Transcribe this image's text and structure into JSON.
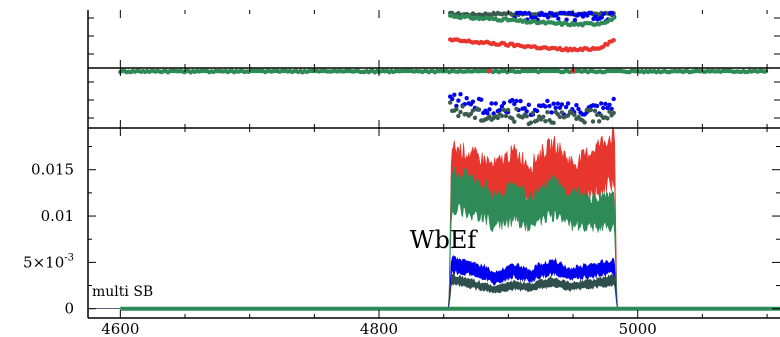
{
  "chart_data": [
    {
      "type": "scatter",
      "panel": "top-upper",
      "x_range": [
        4575,
        5110
      ],
      "y_range": [
        0,
        1
      ],
      "series": [
        {
          "color": "#3a5a4f",
          "x": [
            4855,
            4875,
            4895,
            4915,
            4935,
            4955,
            4975,
            4983
          ],
          "y": [
            0.98,
            0.97,
            0.99,
            0.98,
            0.97,
            0.98,
            0.99,
            0.98
          ]
        },
        {
          "color": "#0000ee",
          "x": [
            4905,
            4915,
            4930,
            4945,
            4960,
            4975,
            4982
          ],
          "y": [
            0.99,
            0.98,
            0.99,
            0.97,
            0.99,
            0.96,
            0.98
          ]
        },
        {
          "color": "#2e8b57",
          "x": [
            4855,
            4875,
            4895,
            4915,
            4935,
            4955,
            4970,
            4983
          ],
          "y": [
            0.95,
            0.9,
            0.88,
            0.83,
            0.8,
            0.78,
            0.8,
            0.9
          ]
        },
        {
          "color": "#e8352e",
          "x": [
            4855,
            4875,
            4895,
            4915,
            4935,
            4955,
            4970,
            4983
          ],
          "y": [
            0.48,
            0.44,
            0.4,
            0.36,
            0.31,
            0.29,
            0.33,
            0.5
          ]
        }
      ]
    },
    {
      "type": "scatter",
      "panel": "top-lower",
      "x_range": [
        4575,
        5110
      ],
      "y_range": [
        0,
        1
      ],
      "series": [
        {
          "color": "#2e8b57",
          "x": [
            4600,
            4700,
            4800,
            4854,
            4983,
            5000,
            5100
          ],
          "y": [
            1,
            1,
            1,
            1,
            1,
            1,
            1
          ]
        },
        {
          "color": "#e8352e",
          "x": [
            4885,
            4950
          ],
          "y": [
            1,
            1
          ]
        },
        {
          "color": "#0000ee",
          "x": [
            4855,
            4870,
            4885,
            4900,
            4915,
            4930,
            4945,
            4960,
            4975,
            4983
          ],
          "y": [
            0.48,
            0.42,
            0.3,
            0.36,
            0.3,
            0.33,
            0.3,
            0.32,
            0.35,
            0.45
          ]
        },
        {
          "color": "#3a5a4f",
          "x": [
            4855,
            4870,
            4885,
            4900,
            4915,
            4930,
            4945,
            4960,
            4975,
            4983
          ],
          "y": [
            0.3,
            0.22,
            0.15,
            0.2,
            0.14,
            0.18,
            0.12,
            0.15,
            0.2,
            0.3
          ]
        }
      ]
    },
    {
      "type": "area",
      "panel": "main",
      "title": "WbEf",
      "annotation": "multi SB",
      "x_range": [
        4575,
        5110
      ],
      "y_range": [
        -0.001,
        0.0195
      ],
      "xticks": [
        4600,
        4800,
        5000
      ],
      "xtick_labels": [
        "4600",
        "4800",
        "5000"
      ],
      "yticks": [
        0,
        0.005,
        0.01,
        0.015
      ],
      "ytick_labels": [
        "0",
        "5×10",
        "0.01",
        "0.015"
      ],
      "ytick_exponent": "-3",
      "series": [
        {
          "color": "#e8352e",
          "x": [
            4575,
            4854,
            4856,
            4870,
            4884,
            4888,
            4905,
            4918,
            4922,
            4935,
            4948,
            4952,
            4968,
            4982,
            4984,
            5110
          ],
          "y": [
            0,
            0,
            0.0165,
            0.0158,
            0.015,
            0.0145,
            0.016,
            0.0145,
            0.0155,
            0.0168,
            0.015,
            0.0148,
            0.0165,
            0.0178,
            0,
            0
          ]
        },
        {
          "color": "#2e8b57",
          "x": [
            4575,
            4854,
            4856,
            4870,
            4884,
            4888,
            4905,
            4918,
            4922,
            4935,
            4948,
            4952,
            4968,
            4982,
            4984,
            5110
          ],
          "y": [
            0,
            0,
            0.014,
            0.0135,
            0.0125,
            0.0115,
            0.0125,
            0.0112,
            0.0122,
            0.0132,
            0.0115,
            0.0118,
            0.0112,
            0.0115,
            0,
            0
          ]
        },
        {
          "color": "#0000ee",
          "x": [
            4575,
            4854,
            4856,
            4870,
            4884,
            4888,
            4905,
            4918,
            4922,
            4935,
            4948,
            4952,
            4968,
            4982,
            4984,
            5110
          ],
          "y": [
            0,
            0,
            0.0052,
            0.0048,
            0.0042,
            0.0035,
            0.0045,
            0.0038,
            0.0044,
            0.005,
            0.004,
            0.0042,
            0.0046,
            0.005,
            0,
            0
          ]
        },
        {
          "color": "#2f4f4f",
          "x": [
            4575,
            4854,
            4856,
            4870,
            4884,
            4888,
            4905,
            4918,
            4922,
            4935,
            4948,
            4952,
            4968,
            4982,
            4984,
            5110
          ],
          "y": [
            0,
            0,
            0.0035,
            0.003,
            0.0025,
            0.0022,
            0.0028,
            0.0024,
            0.0028,
            0.0032,
            0.0026,
            0.0027,
            0.003,
            0.0034,
            0,
            0
          ]
        }
      ]
    }
  ]
}
